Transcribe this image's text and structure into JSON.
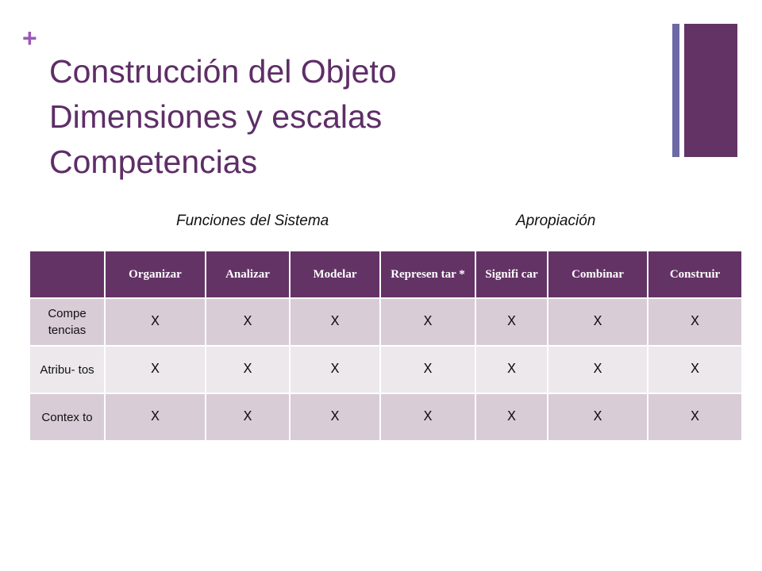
{
  "title_lines": [
    "Construcción del Objeto",
    "Dimensiones y escalas",
    "Competencias"
  ],
  "subtitles": {
    "left": "Funciones del Sistema",
    "right": "Apropiación"
  },
  "table": {
    "headers": [
      "",
      "Organizar",
      "Analizar",
      "Modelar",
      "Represen tar *",
      "Signifi car",
      "Combinar",
      "Construir"
    ],
    "rows": [
      {
        "label": "Compe tencias",
        "cells": [
          "X",
          "X",
          "X",
          "X",
          "X",
          "X",
          "X"
        ]
      },
      {
        "label": "Atribu- tos",
        "cells": [
          "X",
          "X",
          "X",
          "X",
          "X",
          "X",
          "X"
        ]
      },
      {
        "label": "Contex to",
        "cells": [
          "X",
          "X",
          "X",
          "X",
          "X",
          "X",
          "X"
        ]
      }
    ]
  },
  "colors": {
    "title": "#5e2e67",
    "accent_plus": "#9b59b6",
    "header_bg": "#643366",
    "bar_thin": "#6b69a6",
    "bar_thick": "#633366",
    "row_odd": "#d8ccd7",
    "row_even": "#ece8ec"
  },
  "icons": [
    "plus-icon"
  ]
}
